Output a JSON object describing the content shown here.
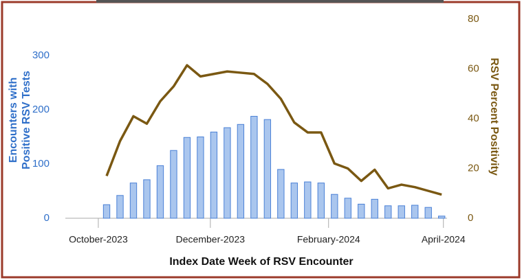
{
  "chart_data": {
    "type": "bar-line",
    "xlabel": "Index Date Week of RSV Encounter",
    "ylabel": [
      "Encounters with",
      "Positive RSV Tests"
    ],
    "y2label": "RSV Percent Positivity",
    "x": [
      0,
      1,
      2,
      3,
      4,
      5,
      6,
      7,
      8,
      9,
      10,
      11,
      12,
      13,
      14,
      15,
      16,
      17,
      18,
      19,
      20,
      21,
      22,
      23,
      24,
      25
    ],
    "xlim": [
      -3.08,
      25.4
    ],
    "xticks": [
      {
        "value": -0.62,
        "label": "October-2023"
      },
      {
        "value": 7.74,
        "label": "December-2023"
      },
      {
        "value": 16.56,
        "label": "February-2024"
      },
      {
        "value": 25.13,
        "label": "April-2024"
      }
    ],
    "ylim": [
      0,
      367
    ],
    "yticks": [
      0,
      100,
      200,
      300
    ],
    "y2lim": [
      0,
      80
    ],
    "y2ticks": [
      0,
      20,
      40,
      60,
      80
    ],
    "series": [
      {
        "name": "Encounters with Positive RSV Tests",
        "type": "bar",
        "color": "#aac6ee",
        "edge_color": "#4a80d6",
        "values": [
          25,
          42,
          65,
          71,
          97,
          125,
          149,
          150,
          159,
          167,
          173,
          188,
          182,
          90,
          65,
          67,
          65,
          44,
          37,
          26,
          35,
          23,
          23,
          24,
          20,
          4
        ]
      },
      {
        "name": "RSV Percent Positivity",
        "type": "line",
        "axis": "y2",
        "color": "#7a5812",
        "values": [
          17,
          31,
          41,
          38,
          47,
          53,
          61.5,
          57,
          58,
          59,
          58.5,
          58,
          54,
          48,
          38.5,
          34.5,
          34.5,
          22,
          20,
          15,
          19.5,
          12,
          13.5,
          12.5,
          11,
          9.5
        ]
      }
    ]
  }
}
